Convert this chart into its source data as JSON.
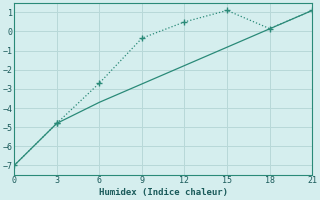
{
  "line1_x": [
    0,
    3,
    6,
    9,
    12,
    15,
    18,
    21
  ],
  "line1_y": [
    -7,
    -4.8,
    -2.7,
    -0.35,
    0.5,
    1.1,
    0.15,
    1.1
  ],
  "line2_x": [
    0,
    3,
    6,
    21
  ],
  "line2_y": [
    -7,
    -4.8,
    -3.7,
    1.1
  ],
  "line_color": "#2a8a78",
  "bg_color": "#d5eeee",
  "xlabel": "Humidex (Indice chaleur)",
  "xlim": [
    0,
    21
  ],
  "ylim": [
    -7.5,
    1.5
  ],
  "xticks": [
    0,
    3,
    6,
    9,
    12,
    15,
    18,
    21
  ],
  "yticks": [
    -7,
    -6,
    -5,
    -4,
    -3,
    -2,
    -1,
    0,
    1
  ],
  "grid_color": "#b8d8d8"
}
